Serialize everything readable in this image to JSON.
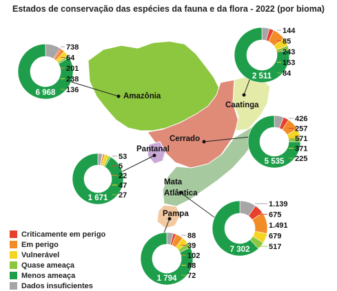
{
  "title": "Estados de conservação das espécies da fauna e da flora - 2022 (por bioma)",
  "colors": {
    "critically_endangered": "#e8402d",
    "endangered": "#f28c28",
    "vulnerable": "#f5d423",
    "near_threatened": "#8dc63f",
    "least_concern": "#1e9e4a",
    "data_deficient": "#a6a6a6",
    "amazonia_fill": "#8dc63f",
    "caatinga_fill": "#e4eba8",
    "cerrado_fill": "#e08a78",
    "pantanal_fill": "#c9a8d8",
    "mata_atlantica_fill": "#a7c9a0",
    "pampa_fill": "#f2c9a0"
  },
  "legend": [
    {
      "key": "critically_endangered",
      "label": "Criticamente em perigo"
    },
    {
      "key": "endangered",
      "label": "Em perigo"
    },
    {
      "key": "vulnerable",
      "label": "Vulnerável"
    },
    {
      "key": "near_threatened",
      "label": "Quase ameaça"
    },
    {
      "key": "least_concern",
      "label": "Menos ameaça"
    },
    {
      "key": "data_deficient",
      "label": "Dados insuficientes"
    }
  ],
  "biomes": [
    {
      "id": "amazonia",
      "name": "Amazônia",
      "center_label": "6 968",
      "values": {
        "critically_endangered": 64,
        "endangered": 201,
        "vulnerable": 238,
        "near_threatened": 136,
        "least_concern": 6968,
        "data_deficient": 738
      },
      "labels": {
        "data_deficient": "738",
        "critically_endangered": "64",
        "endangered": "201",
        "vulnerable": "238",
        "near_threatened": "136"
      }
    },
    {
      "id": "caatinga",
      "name": "Caatinga",
      "center_label": "2 511",
      "values": {
        "critically_endangered": 85,
        "endangered": 243,
        "vulnerable": 153,
        "near_threatened": 84,
        "least_concern": 2511,
        "data_deficient": 144
      },
      "labels": {
        "data_deficient": "144",
        "critically_endangered": "85",
        "endangered": "243",
        "vulnerable": "153",
        "near_threatened": "84"
      }
    },
    {
      "id": "cerrado",
      "name": "Cerrado",
      "center_label": "5 535",
      "values": {
        "critically_endangered": 257,
        "endangered": 571,
        "vulnerable": 371,
        "near_threatened": 225,
        "least_concern": 5535,
        "data_deficient": 426
      },
      "labels": {
        "data_deficient": "426",
        "critically_endangered": "257",
        "endangered": "571",
        "vulnerable": "371",
        "near_threatened": "225"
      }
    },
    {
      "id": "pantanal",
      "name": "Pantanal",
      "center_label": "1 671",
      "values": {
        "critically_endangered": 5,
        "endangered": 22,
        "vulnerable": 47,
        "near_threatened": 27,
        "least_concern": 1671,
        "data_deficient": 53
      },
      "labels": {
        "data_deficient": "53",
        "critically_endangered": "5",
        "endangered": "22",
        "vulnerable": "47",
        "near_threatened": "27"
      }
    },
    {
      "id": "mata_atlantica",
      "name_line1": "Mata",
      "name_line2": "Atlântica",
      "center_label": "7 302",
      "values": {
        "critically_endangered": 675,
        "endangered": 1491,
        "vulnerable": 679,
        "near_threatened": 517,
        "least_concern": 7302,
        "data_deficient": 1139
      },
      "labels": {
        "data_deficient": "1.139",
        "critically_endangered": "675",
        "endangered": "1.491",
        "vulnerable": "679",
        "near_threatened": "517"
      }
    },
    {
      "id": "pampa",
      "name": "Pampa",
      "center_label": "1 794",
      "values": {
        "critically_endangered": 39,
        "endangered": 102,
        "vulnerable": 88,
        "near_threatened": 72,
        "least_concern": 1794,
        "data_deficient": 88
      },
      "labels": {
        "data_deficient": "88",
        "critically_endangered": "39",
        "endangered": "102",
        "vulnerable": "88",
        "near_threatened": "72"
      }
    }
  ]
}
